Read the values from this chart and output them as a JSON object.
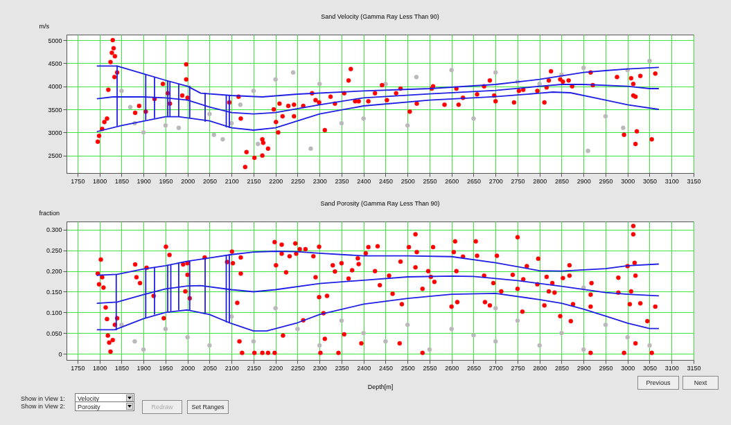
{
  "chart_data": [
    {
      "type": "scatter",
      "title": "Sand Velocity (Gamma Ray Less Than 90)",
      "ylabel": "m/s",
      "xlim": [
        1725,
        3150
      ],
      "xticks": [
        1750,
        1800,
        1850,
        1900,
        1950,
        2000,
        2050,
        2100,
        2150,
        2200,
        2250,
        2300,
        2350,
        2400,
        2450,
        2500,
        2550,
        2600,
        2650,
        2700,
        2750,
        2800,
        2850,
        2900,
        2950,
        3000,
        3050,
        3100,
        3150
      ],
      "ylim": [
        2120,
        5120
      ],
      "yticks": [
        2500,
        3000,
        3500,
        4000,
        4500,
        5000
      ],
      "grid": true,
      "series": [
        {
          "type": "scatter",
          "marker": "circle",
          "color": "#b9b9b9",
          "x": [
            1850,
            1870,
            1880,
            1900,
            1950,
            1980,
            2050,
            2060,
            2080,
            2100,
            2120,
            2150,
            2160,
            2200,
            2240,
            2280,
            2300,
            2350,
            2400,
            2450,
            2500,
            2520,
            2600,
            2650,
            2700,
            2750,
            2800,
            2850,
            2900,
            2950,
            3000,
            3050,
            2990,
            2910
          ],
          "values": [
            3900,
            3550,
            3200,
            3000,
            3150,
            3100,
            3400,
            2950,
            2850,
            3200,
            3600,
            3900,
            2750,
            4150,
            4300,
            2650,
            4050,
            3200,
            3300,
            4050,
            3150,
            4200,
            4350,
            3300,
            4300,
            4100,
            4050,
            4250,
            4400,
            3350,
            4350,
            4550,
            3100,
            2600
          ]
        },
        {
          "type": "scatter",
          "marker": "circle",
          "color": "#ff0000",
          "x": [
            1796,
            1799,
            1806,
            1811,
            1817,
            1825,
            1828,
            1830,
            1832,
            1835,
            1834,
            1820,
            1840,
            1881,
            1890,
            1905,
            1925,
            1944,
            1955,
            1960,
            1997,
            1997,
            1988,
            2000,
            2095,
            2116,
            2121,
            2134,
            2131,
            2152,
            2170,
            2172,
            2170,
            2183,
            2196,
            2201,
            2206,
            2209,
            2216,
            2229,
            2242,
            2242,
            2263,
            2283,
            2291,
            2299,
            2312,
            2325,
            2335,
            2356,
            2366,
            2371,
            2381,
            2389,
            2411,
            2426,
            2442,
            2453,
            2474,
            2484,
            2505,
            2521,
            2555,
            2558,
            2584,
            2611,
            2616,
            2626,
            2658,
            2674,
            2687,
            2697,
            2700,
            2742,
            2753,
            2763,
            2795,
            2811,
            2816,
            2821,
            2826,
            2847,
            2853,
            2866,
            2874,
            2916,
            2921,
            2976,
            2992,
            3008,
            3013,
            3013,
            3018,
            3021,
            3018,
            3029,
            3055,
            3063
          ],
          "values": [
            2800,
            2925,
            3075,
            3225,
            3300,
            4525,
            4725,
            5000,
            4825,
            4650,
            4200,
            3925,
            4300,
            3425,
            3575,
            3450,
            3725,
            4050,
            3850,
            3625,
            4475,
            4150,
            3800,
            3750,
            3650,
            3775,
            3300,
            2575,
            2250,
            2450,
            2850,
            2775,
            2500,
            2650,
            3500,
            3225,
            3000,
            3625,
            3350,
            3575,
            3600,
            3350,
            3575,
            3850,
            3700,
            3650,
            3050,
            3775,
            3625,
            3850,
            4125,
            4375,
            3675,
            3675,
            3675,
            3850,
            4025,
            3700,
            3850,
            3950,
            3450,
            3625,
            3950,
            4000,
            3600,
            3950,
            3600,
            3750,
            3825,
            4000,
            4125,
            3800,
            3675,
            3650,
            3900,
            3925,
            3900,
            3650,
            3975,
            4125,
            4325,
            4150,
            4100,
            4125,
            4000,
            4300,
            4025,
            4200,
            2950,
            4175,
            4050,
            3800,
            3775,
            3025,
            2750,
            4225,
            2850,
            4275
          ]
        },
        {
          "type": "line",
          "marker": "none",
          "color": "#1e1ee6",
          "x": [
            1795,
            1840,
            1900,
            1950,
            2000,
            2030,
            2100,
            2170,
            2250,
            2400,
            2550,
            2700,
            2800,
            2850,
            2900,
            2950,
            3000,
            3070
          ],
          "values": [
            4440,
            4440,
            4270,
            4130,
            4000,
            3850,
            3800,
            3770,
            3830,
            3900,
            3950,
            4040,
            4150,
            4225,
            4300,
            4340,
            4375,
            4410
          ]
        },
        {
          "type": "line",
          "marker": "none",
          "color": "#1e1ee6",
          "x": [
            1795,
            1830,
            1900,
            1950,
            2000,
            2050,
            2100,
            2150,
            2200,
            2300,
            2400,
            2550,
            2700,
            2800,
            2850,
            2900,
            3000,
            3050,
            3070
          ],
          "values": [
            3730,
            3770,
            3770,
            3750,
            3700,
            3550,
            3430,
            3400,
            3430,
            3600,
            3750,
            3835,
            3910,
            4000,
            4040,
            4040,
            4000,
            3950,
            3950
          ]
        },
        {
          "type": "line",
          "marker": "none",
          "color": "#1e1ee6",
          "x": [
            1795,
            1850,
            1950,
            1980,
            2050,
            2100,
            2150,
            2200,
            2300,
            2400,
            2550,
            2700,
            2800,
            2830,
            2870,
            2950,
            3000,
            3070
          ],
          "values": [
            3020,
            3150,
            3340,
            3340,
            3250,
            3100,
            3050,
            3100,
            3400,
            3575,
            3700,
            3775,
            3850,
            3875,
            3860,
            3700,
            3600,
            3500
          ]
        },
        {
          "type": "line",
          "marker": "none",
          "color": "#1e1ee6",
          "x": [
            1840,
            1840
          ],
          "values": [
            3150,
            4440
          ]
        },
        {
          "type": "line",
          "marker": "none",
          "color": "#1e1ee6",
          "x": [
            1905,
            1905
          ],
          "values": [
            3280,
            4250
          ]
        },
        {
          "type": "line",
          "marker": "none",
          "color": "#1e1ee6",
          "x": [
            1925,
            1925
          ],
          "values": [
            3320,
            4190
          ]
        },
        {
          "type": "line",
          "marker": "none",
          "color": "#1e1ee6",
          "x": [
            1955,
            1955
          ],
          "values": [
            3350,
            4110
          ]
        },
        {
          "type": "line",
          "marker": "none",
          "color": "#1e1ee6",
          "x": [
            1960,
            1960
          ],
          "values": [
            3350,
            4100
          ]
        },
        {
          "type": "line",
          "marker": "none",
          "color": "#1e1ee6",
          "x": [
            1980,
            1980
          ],
          "values": [
            3350,
            4050
          ]
        },
        {
          "type": "line",
          "marker": "none",
          "color": "#1e1ee6",
          "x": [
            2005,
            2005
          ],
          "values": [
            3330,
            4000
          ]
        },
        {
          "type": "line",
          "marker": "none",
          "color": "#1e1ee6",
          "x": [
            2040,
            2040
          ],
          "values": [
            3240,
            3850
          ]
        },
        {
          "type": "line",
          "marker": "none",
          "color": "#1e1ee6",
          "x": [
            2088,
            2088
          ],
          "values": [
            3120,
            3800
          ]
        },
        {
          "type": "line",
          "marker": "none",
          "color": "#1e1ee6",
          "x": [
            2095,
            2095
          ],
          "values": [
            3110,
            3800
          ]
        }
      ]
    },
    {
      "type": "scatter",
      "title": "Sand Porosity (Gamma Ray Less Than 90)",
      "ylabel": "fraction",
      "xlabel": "Depth[m]",
      "xlim": [
        1725,
        3150
      ],
      "xticks": [
        1750,
        1800,
        1850,
        1900,
        1950,
        2000,
        2050,
        2100,
        2150,
        2200,
        2250,
        2300,
        2350,
        2400,
        2450,
        2500,
        2550,
        2600,
        2650,
        2700,
        2750,
        2800,
        2850,
        2900,
        2950,
        3000,
        3050,
        3100,
        3150
      ],
      "ylim": [
        -0.015,
        0.32
      ],
      "yticks": [
        0,
        {
          "value": 0.05,
          "label": "0.050"
        },
        {
          "value": 0.1,
          "label": "0.100"
        },
        {
          "value": 0.15,
          "label": "0.150"
        },
        {
          "value": 0.2,
          "label": "0.200"
        },
        {
          "value": 0.25,
          "label": "0.250"
        },
        {
          "value": 0.3,
          "label": "0.300"
        }
      ],
      "grid": true,
      "series": [
        {
          "type": "scatter",
          "marker": "circle",
          "color": "#b9b9b9",
          "x": [
            1850,
            1880,
            1900,
            1950,
            2000,
            2050,
            2100,
            2150,
            2200,
            2250,
            2300,
            2350,
            2400,
            2450,
            2500,
            2550,
            2600,
            2650,
            2700,
            2750,
            2800,
            2850,
            2900,
            2950,
            3000,
            3050,
            2700,
            2900
          ],
          "values": [
            0.07,
            0.03,
            0.01,
            0.06,
            0.04,
            0.02,
            0.09,
            0.03,
            0.11,
            0.06,
            0.02,
            0.08,
            0.05,
            0.03,
            0.07,
            0.01,
            0.06,
            0.045,
            0.03,
            0.08,
            0.02,
            0.05,
            0.01,
            0.07,
            0.04,
            0.02,
            0.11,
            0.16
          ]
        },
        {
          "type": "scatter",
          "marker": "circle",
          "color": "#ff0000",
          "x": [
            1796,
            1803,
            1799,
            1806,
            1809,
            1814,
            1817,
            1819,
            1822,
            1825,
            1830,
            1835,
            1840,
            1881,
            1884,
            1892,
            1907,
            1923,
            1951,
            1959,
            1946,
            1990,
            1995,
            2000,
            2000,
            2005,
            2039,
            2090,
            2101,
            2103,
            2113,
            2121,
            2121,
            2118,
            2124,
            2152,
            2170,
            2183,
            2198,
            2201,
            2198,
            2214,
            2214,
            2217,
            2224,
            2232,
            2245,
            2247,
            2255,
            2263,
            2268,
            2286,
            2291,
            2299,
            2299,
            2302,
            2309,
            2312,
            2317,
            2330,
            2335,
            2343,
            2350,
            2356,
            2366,
            2374,
            2387,
            2405,
            2389,
            2411,
            2426,
            2432,
            2395,
            2437,
            2458,
            2466,
            2484,
            2482,
            2487,
            2503,
            2518,
            2521,
            2518,
            2534,
            2534,
            2547,
            2553,
            2558,
            2561,
            2600,
            2605,
            2608,
            2611,
            2613,
            2626,
            2655,
            2658,
            2674,
            2676,
            2687,
            2695,
            2703,
            2713,
            2739,
            2750,
            2750,
            2761,
            2763,
            2771,
            2795,
            2797,
            2811,
            2816,
            2821,
            2829,
            2834,
            2847,
            2853,
            2868,
            2868,
            2871,
            2876,
            2916,
            2918,
            2916,
            2916,
            2979,
            2979,
            2992,
            3000,
            3005,
            3008,
            3013,
            3013,
            3016,
            3018,
            3018,
            3029,
            3045,
            3063,
            3055
          ],
          "values": [
            0.194,
            0.228,
            0.168,
            0.185,
            0.16,
            0.112,
            0.084,
            0.044,
            0.027,
            0.005,
            0.033,
            0.07,
            0.086,
            0.216,
            0.185,
            0.171,
            0.208,
            0.14,
            0.259,
            0.239,
            0.086,
            0.216,
            0.151,
            0.219,
            0.191,
            0.134,
            0.233,
            0.222,
            0.247,
            0.219,
            0.123,
            0.194,
            0.233,
            0.03,
            0.002,
            0.002,
            0.002,
            0.002,
            0.27,
            0.214,
            0.002,
            0.264,
            0.242,
            0.044,
            0.197,
            0.236,
            0.267,
            0.242,
            0.253,
            0.081,
            0.253,
            0.236,
            0.185,
            0.259,
            0.137,
            0.002,
            0.098,
            0.036,
            0.14,
            0.214,
            0.199,
            0.002,
            0.219,
            0.047,
            0.182,
            0.202,
            0.231,
            0.243,
            0.217,
            0.258,
            0.2,
            0.26,
            0.025,
            0.166,
            0.189,
            0.145,
            0.223,
            0.025,
            0.12,
            0.258,
            0.289,
            0.246,
            0.209,
            0.157,
            0.002,
            0.2,
            0.186,
            0.258,
            0.174,
            0.114,
            0.246,
            0.272,
            0.2,
            0.125,
            0.235,
            0.272,
            0.237,
            0.189,
            0.125,
            0.117,
            0.171,
            0.237,
            0.151,
            0.191,
            0.282,
            0.157,
            0.102,
            0.18,
            0.212,
            0.168,
            0.23,
            0.117,
            0.186,
            0.151,
            0.171,
            0.148,
            0.091,
            0.183,
            0.189,
            0.214,
            0.079,
            0.12,
            0.002,
            0.171,
            0.143,
            0.114,
            0.184,
            0.148,
            0.002,
            0.212,
            0.12,
            0.151,
            0.309,
            0.289,
            0.22,
            0.189,
            0.025,
            0.122,
            0.079,
            0.114,
            0.002
          ]
        },
        {
          "type": "line",
          "marker": "none",
          "color": "#1e1ee6",
          "x": [
            1795,
            1840,
            1900,
            1950,
            2000,
            2050,
            2100,
            2150,
            2200,
            2250,
            2300,
            2400,
            2500,
            2600,
            2700,
            2800,
            2850,
            2950,
            3000,
            3070
          ],
          "values": [
            0.19,
            0.192,
            0.205,
            0.213,
            0.224,
            0.232,
            0.24,
            0.246,
            0.248,
            0.247,
            0.243,
            0.237,
            0.237,
            0.235,
            0.22,
            0.201,
            0.2,
            0.206,
            0.213,
            0.217
          ]
        },
        {
          "type": "line",
          "marker": "none",
          "color": "#1e1ee6",
          "x": [
            1795,
            1840,
            1900,
            1950,
            2000,
            2030,
            2100,
            2150,
            2200,
            2300,
            2400,
            2500,
            2600,
            2650,
            2750,
            2850,
            2950,
            3000,
            3070
          ],
          "values": [
            0.122,
            0.125,
            0.143,
            0.157,
            0.164,
            0.165,
            0.155,
            0.15,
            0.155,
            0.17,
            0.178,
            0.186,
            0.188,
            0.187,
            0.177,
            0.163,
            0.148,
            0.144,
            0.14
          ]
        },
        {
          "type": "line",
          "marker": "none",
          "color": "#1e1ee6",
          "x": [
            1795,
            1835,
            1900,
            1950,
            2000,
            2050,
            2100,
            2150,
            2180,
            2250,
            2300,
            2400,
            2500,
            2600,
            2700,
            2800,
            2850,
            2900,
            2950,
            3000,
            3050,
            3070
          ],
          "values": [
            0.058,
            0.058,
            0.085,
            0.1,
            0.106,
            0.095,
            0.073,
            0.055,
            0.055,
            0.075,
            0.095,
            0.12,
            0.134,
            0.144,
            0.146,
            0.131,
            0.122,
            0.108,
            0.091,
            0.074,
            0.061,
            0.061
          ]
        },
        {
          "type": "line",
          "marker": "none",
          "color": "#1e1ee6",
          "x": [
            1838,
            1838
          ],
          "values": [
            0.058,
            0.192
          ]
        },
        {
          "type": "line",
          "marker": "none",
          "color": "#1e1ee6",
          "x": [
            1905,
            1905
          ],
          "values": [
            0.088,
            0.205
          ]
        },
        {
          "type": "line",
          "marker": "none",
          "color": "#1e1ee6",
          "x": [
            1925,
            1925
          ],
          "values": [
            0.096,
            0.208
          ]
        },
        {
          "type": "line",
          "marker": "none",
          "color": "#1e1ee6",
          "x": [
            1955,
            1955
          ],
          "values": [
            0.103,
            0.214
          ]
        },
        {
          "type": "line",
          "marker": "none",
          "color": "#1e1ee6",
          "x": [
            1962,
            1962
          ],
          "values": [
            0.104,
            0.215
          ]
        },
        {
          "type": "line",
          "marker": "none",
          "color": "#1e1ee6",
          "x": [
            1980,
            1980
          ],
          "values": [
            0.107,
            0.218
          ]
        },
        {
          "type": "line",
          "marker": "none",
          "color": "#1e1ee6",
          "x": [
            2005,
            2005
          ],
          "values": [
            0.106,
            0.224
          ]
        },
        {
          "type": "line",
          "marker": "none",
          "color": "#1e1ee6",
          "x": [
            2040,
            2040
          ],
          "values": [
            0.097,
            0.231
          ]
        },
        {
          "type": "line",
          "marker": "none",
          "color": "#1e1ee6",
          "x": [
            2088,
            2088
          ],
          "values": [
            0.077,
            0.238
          ]
        },
        {
          "type": "line",
          "marker": "none",
          "color": "#1e1ee6",
          "x": [
            2095,
            2095
          ],
          "values": [
            0.075,
            0.24
          ]
        }
      ],
      "annotations": [
        "Show in View 1:",
        "Velocity",
        "Show in View 2:",
        "Porosity",
        "Redraw",
        "Set Ranges",
        "Previous",
        "Next"
      ]
    }
  ]
}
